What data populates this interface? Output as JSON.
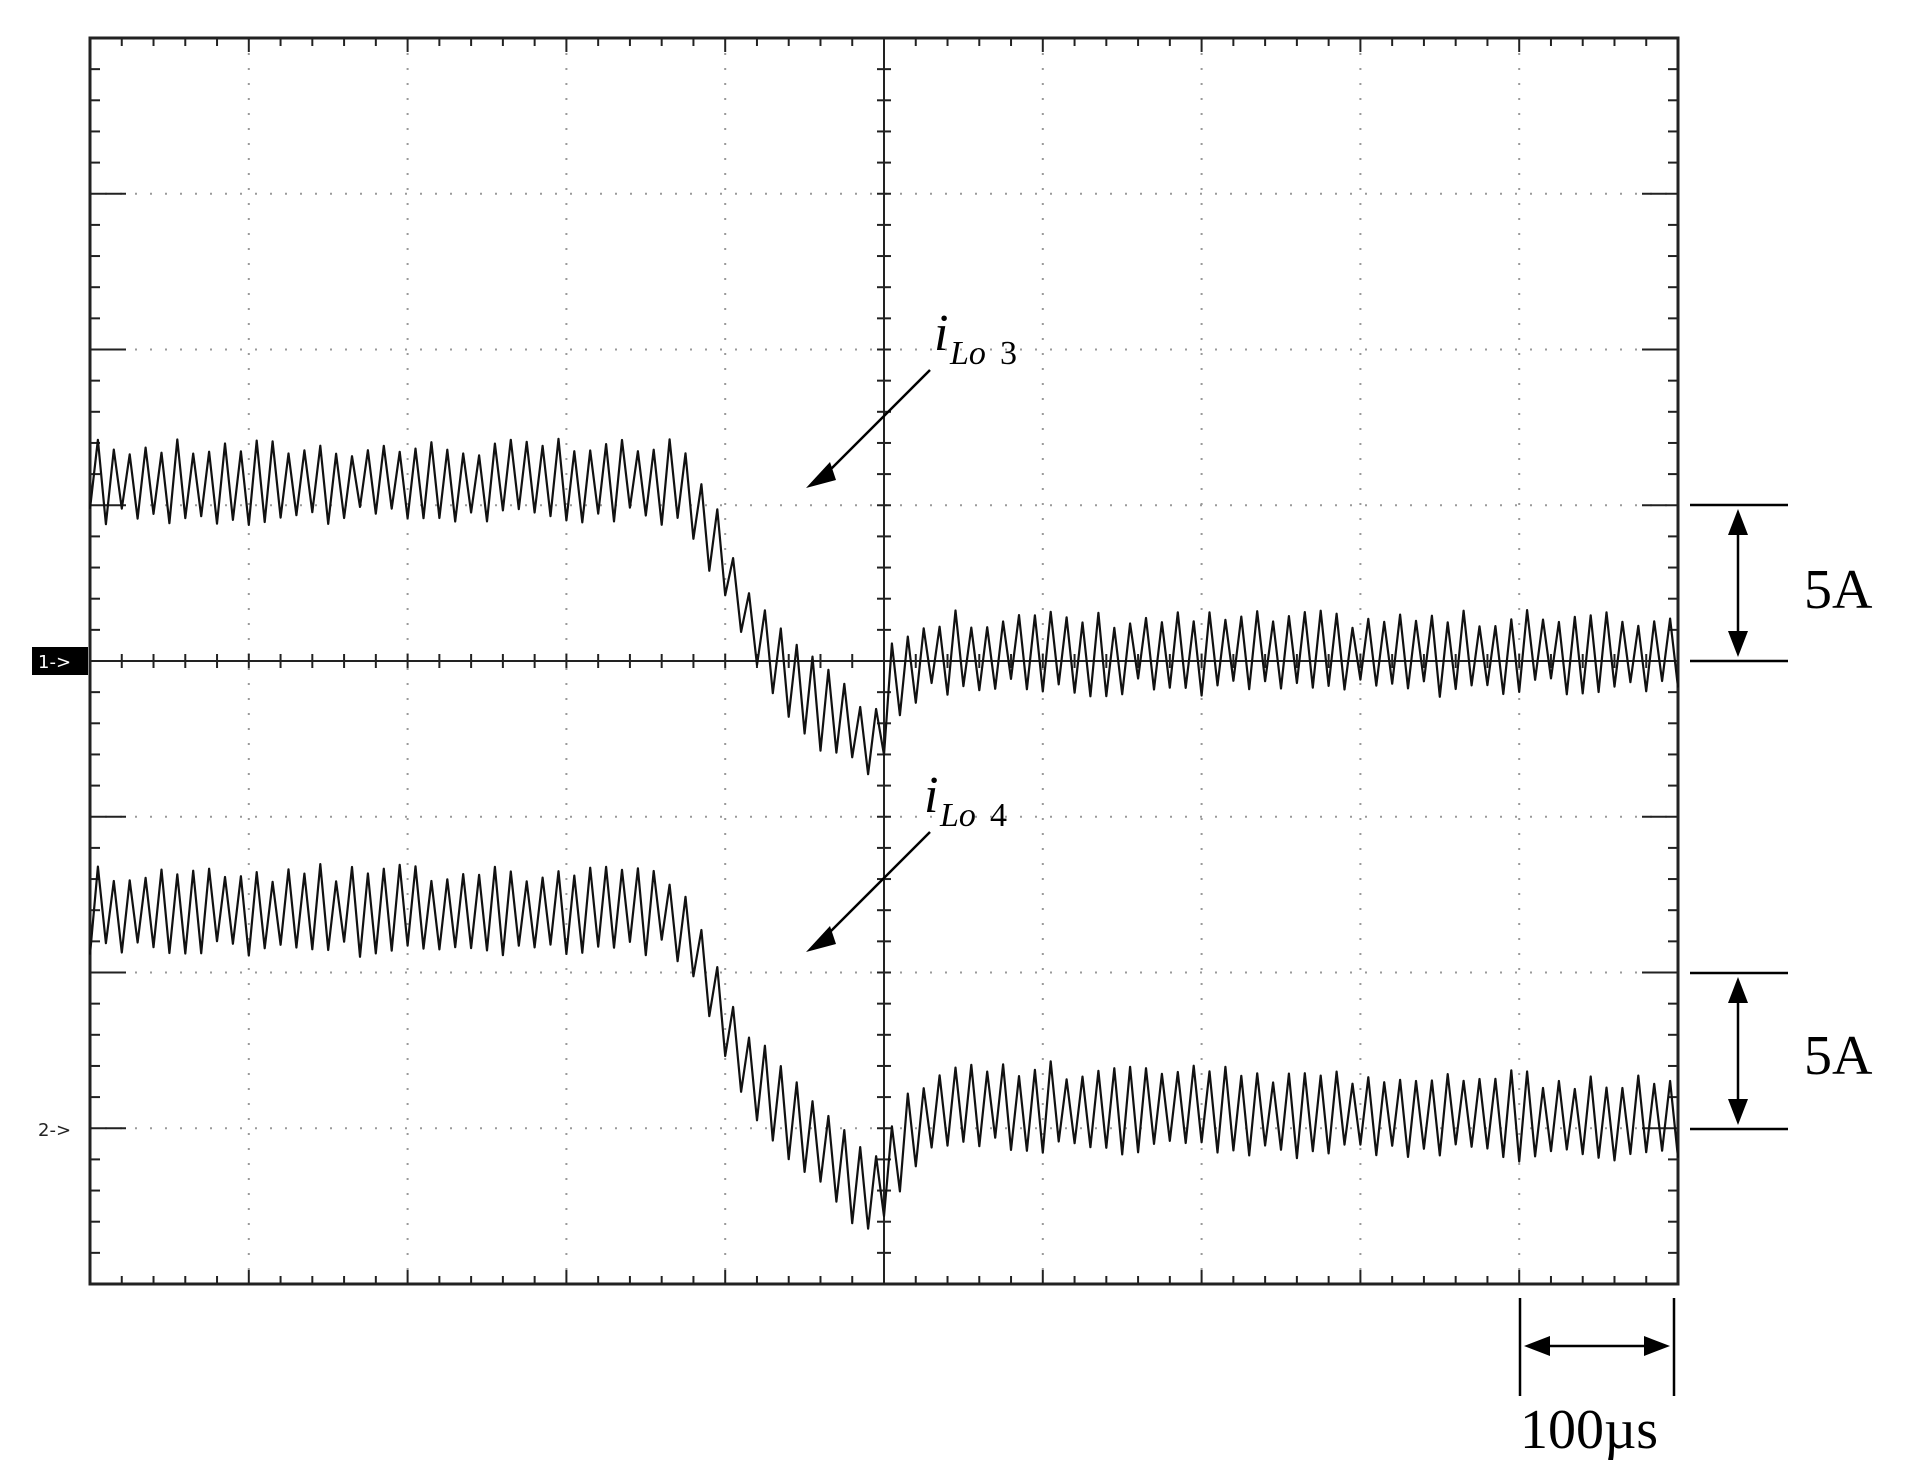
{
  "chart_data": {
    "type": "line",
    "title": "",
    "xlabel": "",
    "ylabel": "",
    "grid": true,
    "x_divisions": 10,
    "y_divisions": 8,
    "x_range_us": [
      0,
      1000
    ],
    "y_range_div": [
      -4,
      4
    ],
    "time_scale": "100µs",
    "time_scale_div": 1,
    "current_scale": "5A",
    "current_scale_div": 1,
    "channel_markers": [
      "1->",
      "2->"
    ],
    "series": [
      {
        "name": "iLo3",
        "label_main": "i",
        "label_sub": "Lo",
        "label_num": "3",
        "channel": 1,
        "offset_div": 0,
        "ripple_div": 0.22,
        "ripple_period_us": 10,
        "points": [
          [
            0,
            1.15
          ],
          [
            370,
            1.15
          ],
          [
            390,
            0.85
          ],
          [
            410,
            0.35
          ],
          [
            430,
            0.0
          ],
          [
            460,
            -0.3
          ],
          [
            490,
            -0.5
          ],
          [
            498,
            -0.45
          ],
          [
            505,
            -0.1
          ],
          [
            530,
            0.05
          ],
          [
            1000,
            0.05
          ]
        ]
      },
      {
        "name": "iLo4",
        "label_main": "i",
        "label_sub": "Lo",
        "label_num": "4",
        "channel": 2,
        "offset_div": -3,
        "ripple_div": 0.24,
        "ripple_period_us": 10,
        "points": [
          [
            0,
            1.4
          ],
          [
            360,
            1.4
          ],
          [
            380,
            1.2
          ],
          [
            400,
            0.65
          ],
          [
            420,
            0.3
          ],
          [
            450,
            0.0
          ],
          [
            480,
            -0.35
          ],
          [
            495,
            -0.45
          ],
          [
            502,
            -0.25
          ],
          [
            520,
            0.0
          ],
          [
            540,
            0.15
          ],
          [
            1000,
            0.05
          ]
        ]
      }
    ]
  }
}
